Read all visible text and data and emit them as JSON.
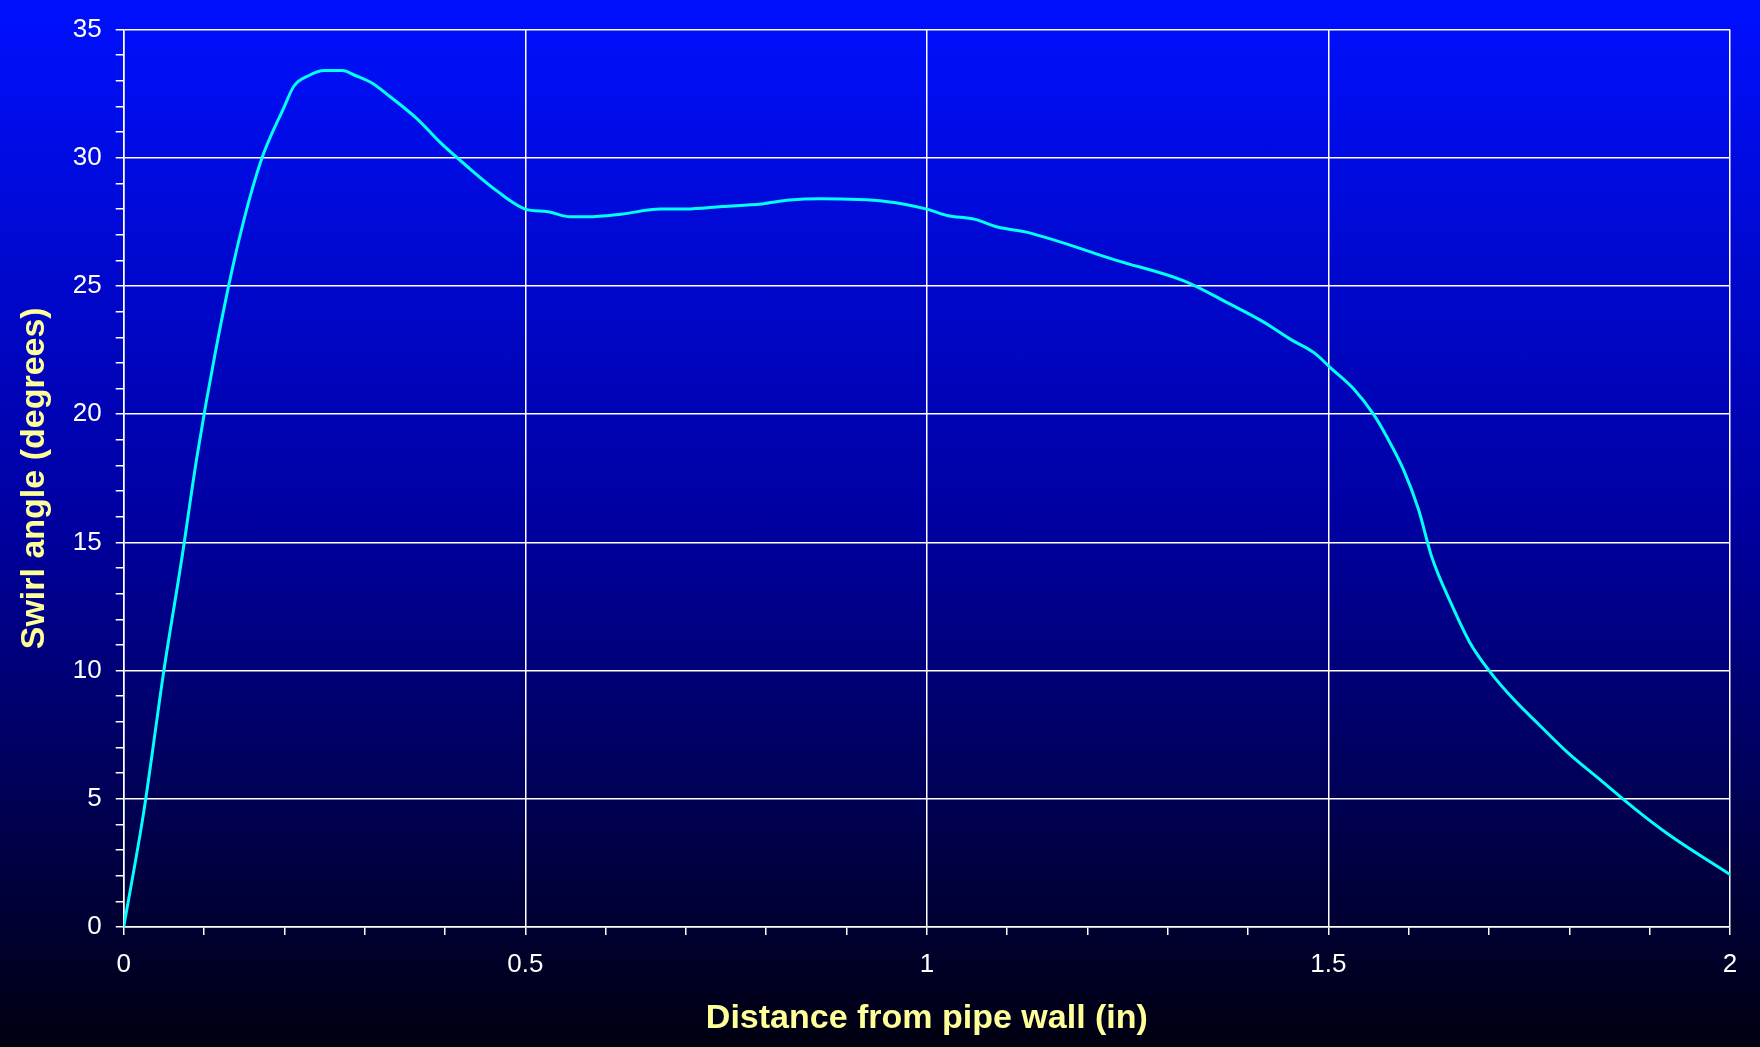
{
  "chart_data": {
    "type": "line",
    "xlabel": "Distance from pipe wall (in)",
    "ylabel": "Swirl angle (degrees)",
    "x": [
      0,
      0.025,
      0.05,
      0.072,
      0.091,
      0.114,
      0.142,
      0.17,
      0.2,
      0.212,
      0.23,
      0.25,
      0.272,
      0.289,
      0.31,
      0.331,
      0.366,
      0.394,
      0.43,
      0.465,
      0.5,
      0.528,
      0.556,
      0.577,
      0.619,
      0.668,
      0.7,
      0.745,
      0.794,
      0.829,
      0.868,
      0.949,
      1.0,
      1.025,
      1.06,
      1.088,
      1.124,
      1.236,
      1.32,
      1.377,
      1.419,
      1.454,
      1.482,
      1.503,
      1.531,
      1.556,
      1.573,
      1.594,
      1.612,
      1.629,
      1.653,
      1.676,
      1.7,
      1.73,
      1.762,
      1.798,
      1.84,
      1.882,
      1.924,
      2.0
    ],
    "series": [
      {
        "color": "#00ffff",
        "values": [
          0,
          4.5,
          10,
          14.3,
          18.3,
          22.4,
          26.6,
          29.8,
          32.0,
          32.8,
          33.2,
          33.4,
          33.4,
          33.2,
          32.9,
          32.4,
          31.5,
          30.6,
          29.6,
          28.7,
          28.0,
          27.9,
          27.7,
          27.7,
          27.8,
          28.0,
          28.0,
          28.1,
          28.2,
          28.35,
          28.4,
          28.3,
          28.0,
          27.75,
          27.6,
          27.3,
          27.1,
          26.0,
          25.2,
          24.3,
          23.6,
          22.9,
          22.4,
          21.8,
          21.0,
          20.0,
          19.1,
          17.8,
          16.3,
          14.4,
          12.6,
          11.1,
          10.0,
          8.9,
          7.9,
          6.8,
          5.7,
          4.6,
          3.6,
          2.05
        ]
      }
    ],
    "xlim": [
      0,
      2
    ],
    "ylim": [
      0,
      35
    ],
    "xticks": [
      0,
      {
        "value": 0.1,
        "label": null
      },
      {
        "value": 0.2,
        "label": null
      },
      {
        "value": 0.3,
        "label": null
      },
      {
        "value": 0.4,
        "label": null
      },
      0.5,
      {
        "value": 0.6,
        "label": null
      },
      {
        "value": 0.7,
        "label": null
      },
      {
        "value": 0.8,
        "label": null
      },
      {
        "value": 0.9,
        "label": null
      },
      1,
      {
        "value": 1.1,
        "label": null
      },
      {
        "value": 1.2,
        "label": null
      },
      {
        "value": 1.3,
        "label": null
      },
      {
        "value": 1.4,
        "label": null
      },
      1.5,
      {
        "value": 1.6,
        "label": null
      },
      {
        "value": 1.7,
        "label": null
      },
      {
        "value": 1.8,
        "label": null
      },
      {
        "value": 1.9,
        "label": null
      },
      2
    ],
    "yticks": [
      0,
      {
        "value": 1,
        "label": null
      },
      {
        "value": 2,
        "label": null
      },
      {
        "value": 3,
        "label": null
      },
      {
        "value": 4,
        "label": null
      },
      5,
      {
        "value": 6,
        "label": null
      },
      {
        "value": 7,
        "label": null
      },
      {
        "value": 8,
        "label": null
      },
      {
        "value": 9,
        "label": null
      },
      10,
      {
        "value": 11,
        "label": null
      },
      {
        "value": 12,
        "label": null
      },
      {
        "value": 13,
        "label": null
      },
      {
        "value": 14,
        "label": null
      },
      15,
      {
        "value": 16,
        "label": null
      },
      {
        "value": 17,
        "label": null
      },
      {
        "value": 18,
        "label": null
      },
      {
        "value": 19,
        "label": null
      },
      20,
      {
        "value": 21,
        "label": null
      },
      {
        "value": 22,
        "label": null
      },
      {
        "value": 23,
        "label": null
      },
      {
        "value": 24,
        "label": null
      },
      25,
      {
        "value": 26,
        "label": null
      },
      {
        "value": 27,
        "label": null
      },
      {
        "value": 28,
        "label": null
      },
      {
        "value": 29,
        "label": null
      },
      30,
      {
        "value": 31,
        "label": null
      },
      {
        "value": 32,
        "label": null
      },
      {
        "value": 33,
        "label": null
      },
      {
        "value": 34,
        "label": null
      },
      35
    ],
    "grid": true,
    "marker": "none",
    "line_style": "solid",
    "legend": false
  }
}
